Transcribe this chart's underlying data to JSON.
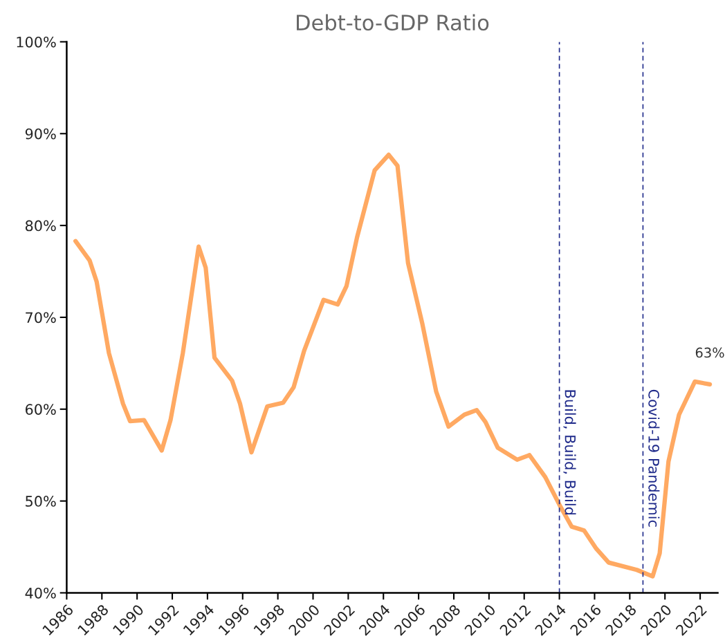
{
  "chart_data": {
    "type": "line",
    "title": "Debt-to-GDP Ratio",
    "x": [
      1986.5,
      1987.3,
      1987.7,
      1988.4,
      1989.2,
      1989.6,
      1990.4,
      1991.4,
      1991.9,
      1992.6,
      1993.5,
      1993.9,
      1994.4,
      1995.4,
      1995.85,
      1996.5,
      1997.4,
      1998.3,
      1998.9,
      1999.5,
      2000.6,
      2001.4,
      2001.9,
      2002.5,
      2003.5,
      2004.3,
      2004.8,
      2005.4,
      2006.2,
      2007.0,
      2007.7,
      2008.6,
      2009.3,
      2009.8,
      2010.5,
      2011.6,
      2012.3,
      2013.2,
      2014.0,
      2014.7,
      2015.4,
      2016.1,
      2016.8,
      2018.4,
      2019.3,
      2019.7,
      2020.2,
      2020.8,
      2021.7,
      2022.55
    ],
    "series": [
      {
        "color": "#ffa962",
        "values": [
          78.3,
          76.2,
          73.9,
          66.1,
          60.6,
          58.7,
          58.8,
          55.5,
          58.8,
          66.1,
          77.7,
          75.4,
          65.6,
          63.1,
          60.6,
          55.3,
          60.3,
          60.7,
          62.4,
          66.4,
          71.9,
          71.4,
          73.4,
          78.7,
          86.0,
          87.7,
          86.5,
          75.9,
          69.4,
          61.9,
          58.1,
          59.4,
          59.9,
          58.6,
          55.8,
          54.5,
          55.0,
          52.6,
          49.6,
          47.2,
          46.8,
          44.8,
          43.3,
          42.5,
          41.8,
          44.3,
          54.3,
          59.4,
          63.0,
          62.7
        ]
      }
    ],
    "xlim": [
      1986,
      2023
    ],
    "xticks": [
      1986,
      1988,
      1990,
      1992,
      1994,
      1996,
      1998,
      2000,
      2002,
      2004,
      2006,
      2008,
      2010,
      2012,
      2014,
      2016,
      2018,
      2020,
      2022
    ],
    "ylim": [
      40,
      100
    ],
    "yticks": [
      {
        "value": 40,
        "label": "40%"
      },
      {
        "value": 50,
        "label": "50%"
      },
      {
        "value": 60,
        "label": "60%"
      },
      {
        "value": 70,
        "label": "70%"
      },
      {
        "value": 80,
        "label": "80%"
      },
      {
        "value": 90,
        "label": "90%"
      },
      {
        "value": 100,
        "label": "100%"
      }
    ],
    "ref_lines": [
      {
        "axis": "x",
        "value": 2014,
        "label": "Build, Build, Build",
        "color": "#1f2a8a",
        "line_style": "dashed"
      },
      {
        "axis": "x",
        "value": 2018.75,
        "label": "Covid-19 Pandemic",
        "color": "#1f2a8a",
        "line_style": "dashed"
      }
    ],
    "annotations": [
      {
        "text": "63%",
        "x": 2022.55,
        "y": 62.7
      }
    ],
    "grid": false,
    "legend": false,
    "marker": "none",
    "line_style": "solid"
  }
}
